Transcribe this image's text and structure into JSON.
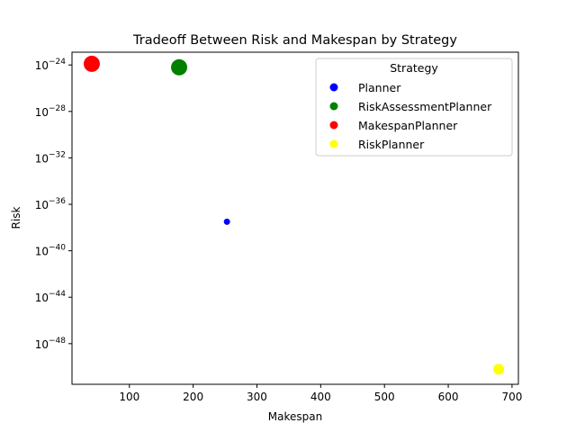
{
  "chart_data": {
    "type": "scatter",
    "title": "Tradeoff Between Risk and Makespan by Strategy",
    "xlabel": "Makespan",
    "ylabel": "Risk",
    "xlim": [
      10,
      710
    ],
    "y_scale": "log",
    "ylim_exponent": [
      -51.5,
      -22.9
    ],
    "x_ticks": [
      100,
      200,
      300,
      400,
      500,
      600,
      700
    ],
    "y_tick_exponents": [
      -24,
      -28,
      -32,
      -36,
      -40,
      -44,
      -48
    ],
    "y_tick_base": "10",
    "grid": false,
    "legend": {
      "title": "Strategy",
      "placement": "top-right",
      "entries": [
        {
          "name": "Planner",
          "color": "#0000ff"
        },
        {
          "name": "RiskAssessmentPlanner",
          "color": "#008000"
        },
        {
          "name": "MakespanPlanner",
          "color": "#ff0000"
        },
        {
          "name": "RiskPlanner",
          "color": "#ffff00"
        }
      ]
    },
    "series": [
      {
        "name": "Planner",
        "color": "#0000ff",
        "points": [
          {
            "x": 253,
            "risk_exponent": -37.5,
            "size": "small"
          }
        ]
      },
      {
        "name": "RiskAssessmentPlanner",
        "color": "#008000",
        "points": [
          {
            "x": 178,
            "risk_exponent": -24.2,
            "size": "large"
          }
        ]
      },
      {
        "name": "MakespanPlanner",
        "color": "#ff0000",
        "points": [
          {
            "x": 41,
            "risk_exponent": -23.9,
            "size": "large"
          }
        ]
      },
      {
        "name": "RiskPlanner",
        "color": "#ffff00",
        "points": [
          {
            "x": 679,
            "risk_exponent": -50.2,
            "size": "medium"
          }
        ]
      }
    ]
  }
}
